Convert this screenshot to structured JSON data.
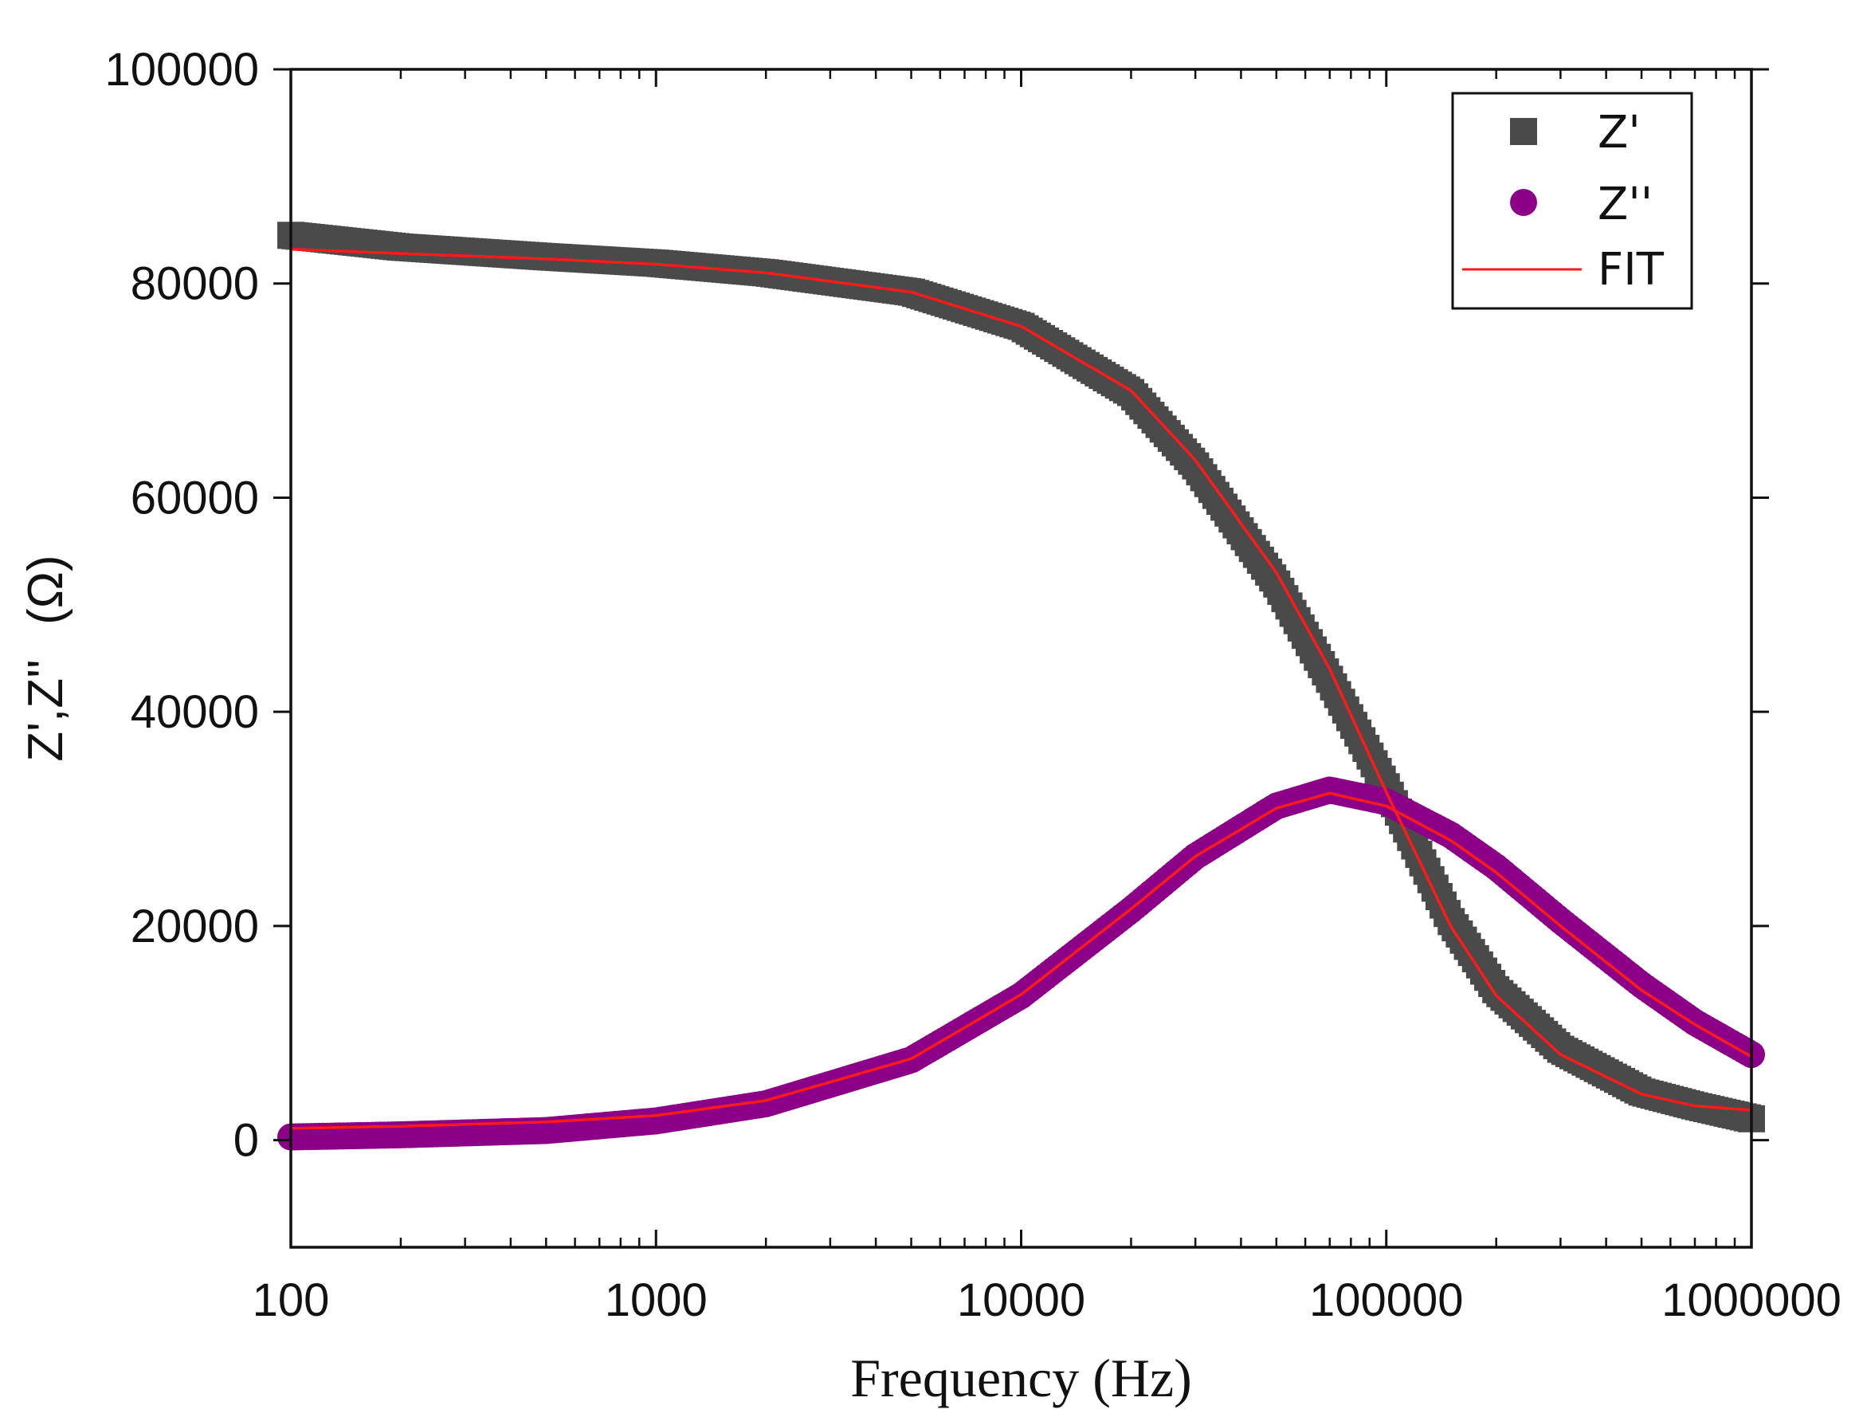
{
  "chart_data": {
    "type": "scatter",
    "title": "",
    "xlabel": "Frequency (Hz)",
    "ylabel_text": "Z',Z''",
    "ylabel_unit": "(Ω)",
    "xscale": "log",
    "xlim": [
      100,
      1000000
    ],
    "ylim": [
      -10000,
      100000
    ],
    "xticks": [
      100,
      1000,
      10000,
      100000,
      1000000
    ],
    "xtick_labels": [
      "100",
      "1000",
      "10000",
      "100000",
      "1000000"
    ],
    "yticks": [
      0,
      20000,
      40000,
      60000,
      80000,
      100000
    ],
    "ytick_labels": [
      "0",
      "20000",
      "40000",
      "60000",
      "80000",
      "100000"
    ],
    "legend_position": "top-right",
    "series": [
      {
        "name": "Z'",
        "kind": "markers",
        "marker": "square",
        "color": "#4a4a4a",
        "x": [
          100,
          200,
          500,
          1000,
          2000,
          5000,
          10000,
          20000,
          30000,
          50000,
          70000,
          100000,
          150000,
          200000,
          300000,
          500000,
          700000,
          1000000
        ],
        "y": [
          84500,
          83400,
          82500,
          81900,
          81000,
          79200,
          76000,
          69800,
          63000,
          52000,
          43000,
          33000,
          20500,
          14000,
          8500,
          4500,
          3200,
          2000
        ]
      },
      {
        "name": "Z''",
        "kind": "markers",
        "marker": "circle",
        "color": "#8b0086",
        "x": [
          100,
          200,
          500,
          1000,
          2000,
          5000,
          10000,
          20000,
          30000,
          50000,
          70000,
          100000,
          150000,
          200000,
          300000,
          500000,
          700000,
          1000000
        ],
        "y": [
          300,
          500,
          900,
          1800,
          3400,
          7500,
          13500,
          21500,
          26500,
          31200,
          32700,
          31600,
          28500,
          25500,
          20500,
          14500,
          11000,
          8000
        ]
      },
      {
        "name": "FIT",
        "kind": "line",
        "color": "#ff1a1a",
        "curves": [
          {
            "x": [
              100,
              200,
              500,
              1000,
              2000,
              5000,
              10000,
              20000,
              30000,
              50000,
              70000,
              100000,
              150000,
              200000,
              300000,
              500000,
              700000,
              1000000
            ],
            "y": [
              83200,
              82800,
              82300,
              81800,
              81000,
              79200,
              76000,
              70000,
              63500,
              53000,
              44000,
              32500,
              20000,
              13500,
              8000,
              4300,
              3200,
              2800
            ]
          },
          {
            "x": [
              100,
              200,
              500,
              1000,
              2000,
              5000,
              10000,
              20000,
              30000,
              50000,
              70000,
              100000,
              150000,
              200000,
              300000,
              500000,
              700000,
              1000000
            ],
            "y": [
              1100,
              1300,
              1700,
              2300,
              3700,
              7600,
              13600,
              21600,
              26500,
              31000,
              32400,
              31200,
              28000,
              25000,
              20000,
              14000,
              10800,
              7800
            ]
          }
        ]
      }
    ]
  }
}
